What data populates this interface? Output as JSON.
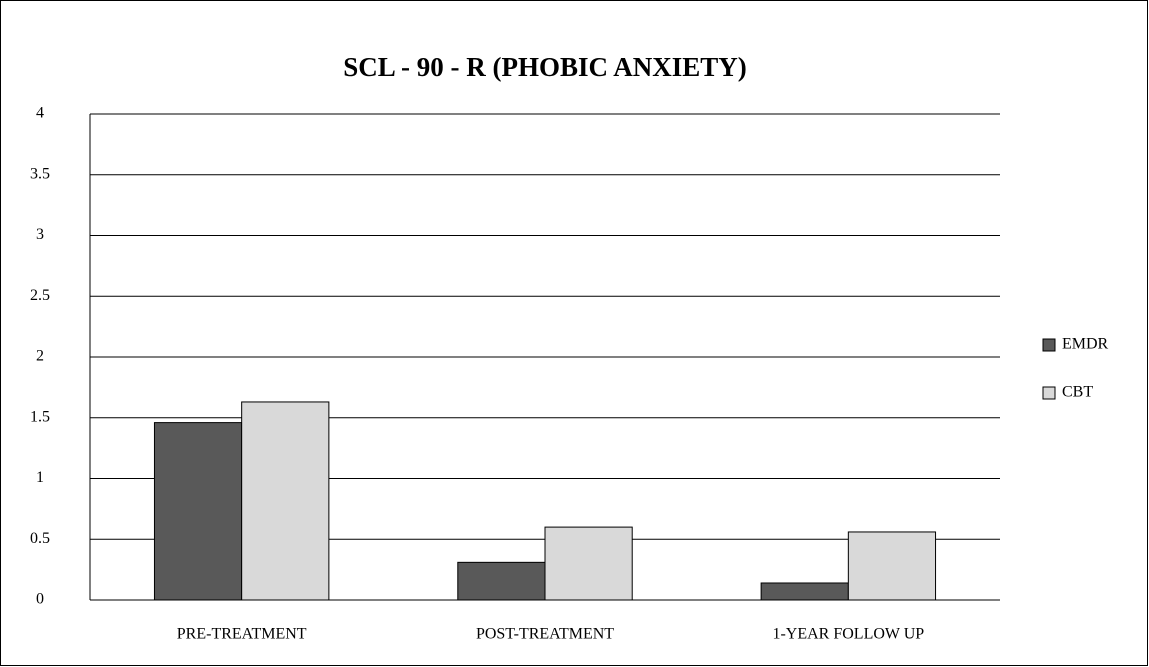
{
  "chart_data": {
    "type": "bar",
    "title": "SCL - 90 - R (PHOBIC ANXIETY)",
    "categories": [
      "PRE-TREATMENT",
      "POST-TREATMENT",
      "1-YEAR FOLLOW UP"
    ],
    "series": [
      {
        "name": "EMDR",
        "color": "#595959",
        "values": [
          1.46,
          0.31,
          0.14
        ]
      },
      {
        "name": "CBT",
        "color": "#d9d9d9",
        "values": [
          1.63,
          0.6,
          0.56
        ]
      }
    ],
    "ylim": [
      0,
      4
    ],
    "yticks": [
      0,
      0.5,
      1,
      1.5,
      2,
      2.5,
      3,
      3.5,
      4
    ],
    "grid": true,
    "legend": "right"
  }
}
